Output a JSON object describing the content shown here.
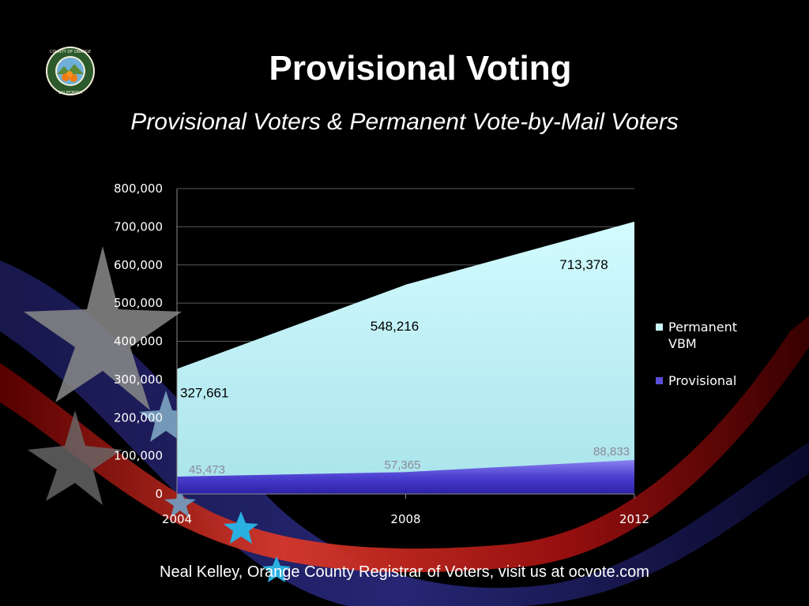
{
  "slide": {
    "title": "Provisional Voting",
    "subtitle": "Provisional Voters & Permanent Vote-by-Mail Voters",
    "footer": "Neal Kelley, Orange County Registrar of Voters, visit us at ocvote.com",
    "logo": {
      "icon": "orange-county-seal-icon",
      "text_top": "COUNTY OF ORANGE",
      "text_bottom": "CALIFORNIA"
    }
  },
  "chart_data": {
    "type": "area",
    "title": "",
    "xlabel": "",
    "ylabel": "",
    "categories": [
      "2004",
      "2008",
      "2012"
    ],
    "ylim": [
      0,
      800000
    ],
    "yticks": [
      "0",
      "100,000",
      "200,000",
      "300,000",
      "400,000",
      "500,000",
      "600,000",
      "700,000",
      "800,000"
    ],
    "grid": true,
    "legend_position": "right",
    "series": [
      {
        "name": "Permanent VBM",
        "values": [
          327661,
          548216,
          713378
        ],
        "labels": [
          "327,661",
          "548,216",
          "713,378"
        ],
        "color": "#c9f7fa"
      },
      {
        "name": "Provisional",
        "values": [
          45473,
          57365,
          88833
        ],
        "labels": [
          "45,473",
          "57,365",
          "88,833"
        ],
        "color": "#5a4fd6"
      }
    ],
    "legend_lines": [
      [
        "Permanent",
        "VBM"
      ],
      [
        "Provisional"
      ]
    ]
  }
}
